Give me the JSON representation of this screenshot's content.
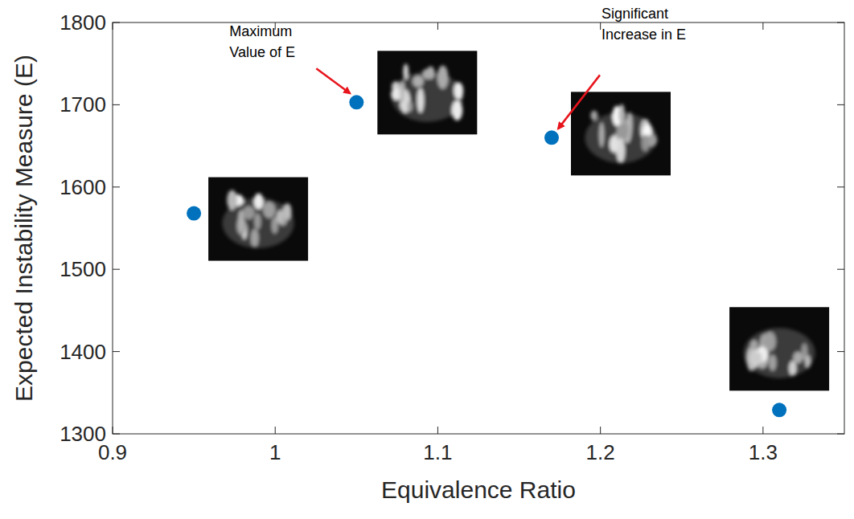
{
  "chart_data": {
    "type": "scatter",
    "x_label": "Equivalence Ratio",
    "y_label": "Expected Instability Measure (E)",
    "x": [
      0.95,
      1.05,
      1.17,
      1.31
    ],
    "values": [
      1568,
      1703,
      1660,
      1329
    ],
    "color": "#0072bd",
    "marker": "circle",
    "xlim": [
      0.9,
      1.35
    ],
    "xticks": [
      0.9,
      1,
      1.1,
      1.2,
      1.3
    ],
    "ylim": [
      1300,
      1800
    ],
    "yticks": [
      1300,
      1400,
      1500,
      1600,
      1700,
      1800
    ],
    "grid": false,
    "annotations": [
      {
        "text": "Maximum Value of E",
        "x": 1.05,
        "y": 1703
      },
      {
        "text": "Significant Increase in E",
        "x": 1.17,
        "y": 1660
      }
    ]
  }
}
